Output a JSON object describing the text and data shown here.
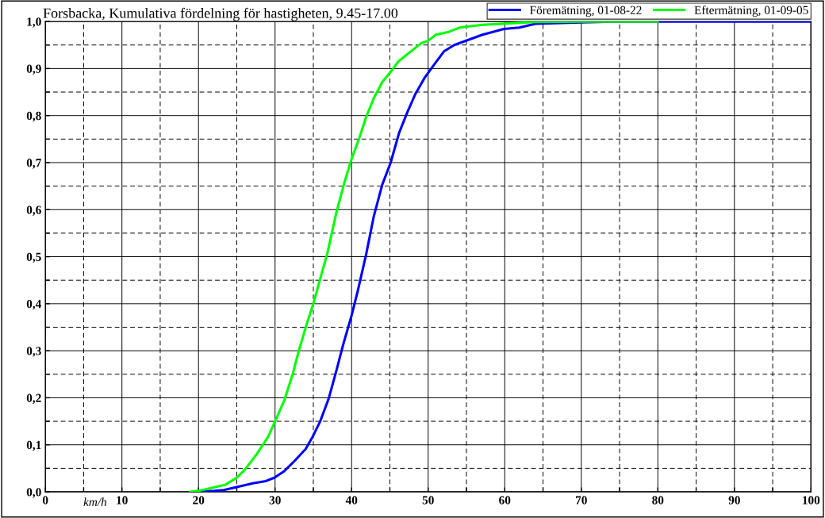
{
  "chart_data": {
    "type": "line",
    "title": "Forsbacka, Kumulativa fördelning för hastigheten, 9.45-17.00",
    "xlabel": "km/h",
    "xlim": [
      0,
      100
    ],
    "xticks": [
      0,
      {
        "value": 5,
        "label": null
      },
      10,
      {
        "value": 15,
        "label": null
      },
      20,
      {
        "value": 25,
        "label": null
      },
      30,
      {
        "value": 35,
        "label": null
      },
      40,
      {
        "value": 45,
        "label": null
      },
      50,
      {
        "value": 55,
        "label": null
      },
      60,
      {
        "value": 65,
        "label": null
      },
      70,
      {
        "value": 75,
        "label": null
      },
      80,
      {
        "value": 85,
        "label": null
      },
      90,
      {
        "value": 95,
        "label": null
      },
      100
    ],
    "ylim": [
      0,
      1
    ],
    "yticks": [
      {
        "value": 0,
        "label": "0,0"
      },
      {
        "value": 0.05,
        "label": null
      },
      {
        "value": 0.1,
        "label": "0,1"
      },
      {
        "value": 0.15,
        "label": null
      },
      {
        "value": 0.2,
        "label": "0,2"
      },
      {
        "value": 0.25,
        "label": null
      },
      {
        "value": 0.3,
        "label": "0,3"
      },
      {
        "value": 0.35,
        "label": null
      },
      {
        "value": 0.4,
        "label": "0,4"
      },
      {
        "value": 0.45,
        "label": null
      },
      {
        "value": 0.5,
        "label": "0,5"
      },
      {
        "value": 0.55,
        "label": null
      },
      {
        "value": 0.6,
        "label": "0,6"
      },
      {
        "value": 0.65,
        "label": null
      },
      {
        "value": 0.7,
        "label": "0,7"
      },
      {
        "value": 0.75,
        "label": null
      },
      {
        "value": 0.8,
        "label": "0,8"
      },
      {
        "value": 0.85,
        "label": null
      },
      {
        "value": 0.9,
        "label": "0,9"
      },
      {
        "value": 0.95,
        "label": null
      },
      {
        "value": 1.0,
        "label": "1,0"
      }
    ],
    "grid": true,
    "legend": "top right",
    "marker": "none",
    "line_style": "solid",
    "series": [
      {
        "name": "Föremätning, 01-08-22",
        "color": "#0000ff",
        "x": [
          20,
          22,
          23.3,
          25,
          27.1,
          28.8,
          29.9,
          31.2,
          32.5,
          34,
          34.9,
          35.9,
          37,
          38,
          38.9,
          40,
          40.8,
          41.9,
          42.9,
          44,
          45.1,
          46.2,
          47.2,
          48.3,
          49.6,
          50.9,
          52.1,
          53.4,
          55.6,
          57.1,
          59.9,
          61.9,
          64,
          70,
          75,
          100
        ],
        "values": [
          0,
          0.002,
          0.004,
          0.01,
          0.018,
          0.023,
          0.03,
          0.044,
          0.065,
          0.091,
          0.117,
          0.15,
          0.198,
          0.257,
          0.313,
          0.375,
          0.427,
          0.505,
          0.586,
          0.653,
          0.7,
          0.763,
          0.804,
          0.845,
          0.882,
          0.911,
          0.937,
          0.95,
          0.963,
          0.972,
          0.984,
          0.987,
          0.995,
          0.998,
          1.0,
          1.0
        ]
      },
      {
        "name": "Eftermätning, 01-09-05",
        "color": "#00ff00",
        "x": [
          18.9,
          20,
          22.2,
          23.5,
          25,
          26.1,
          27.6,
          29.1,
          30,
          31.2,
          32.3,
          33.1,
          34.2,
          35,
          35.9,
          36.8,
          38,
          39.1,
          40,
          41,
          41.9,
          42.9,
          44,
          45.1,
          46.1,
          48.1,
          49.1,
          50,
          51,
          52.7,
          54.1,
          57.1,
          64,
          70,
          80
        ],
        "values": [
          0,
          0.002,
          0.01,
          0.015,
          0.03,
          0.048,
          0.08,
          0.117,
          0.15,
          0.194,
          0.25,
          0.3,
          0.36,
          0.4,
          0.453,
          0.505,
          0.593,
          0.66,
          0.708,
          0.752,
          0.797,
          0.837,
          0.871,
          0.893,
          0.915,
          0.941,
          0.954,
          0.959,
          0.972,
          0.978,
          0.987,
          0.993,
          0.999,
          1.0,
          1.0
        ]
      }
    ]
  }
}
